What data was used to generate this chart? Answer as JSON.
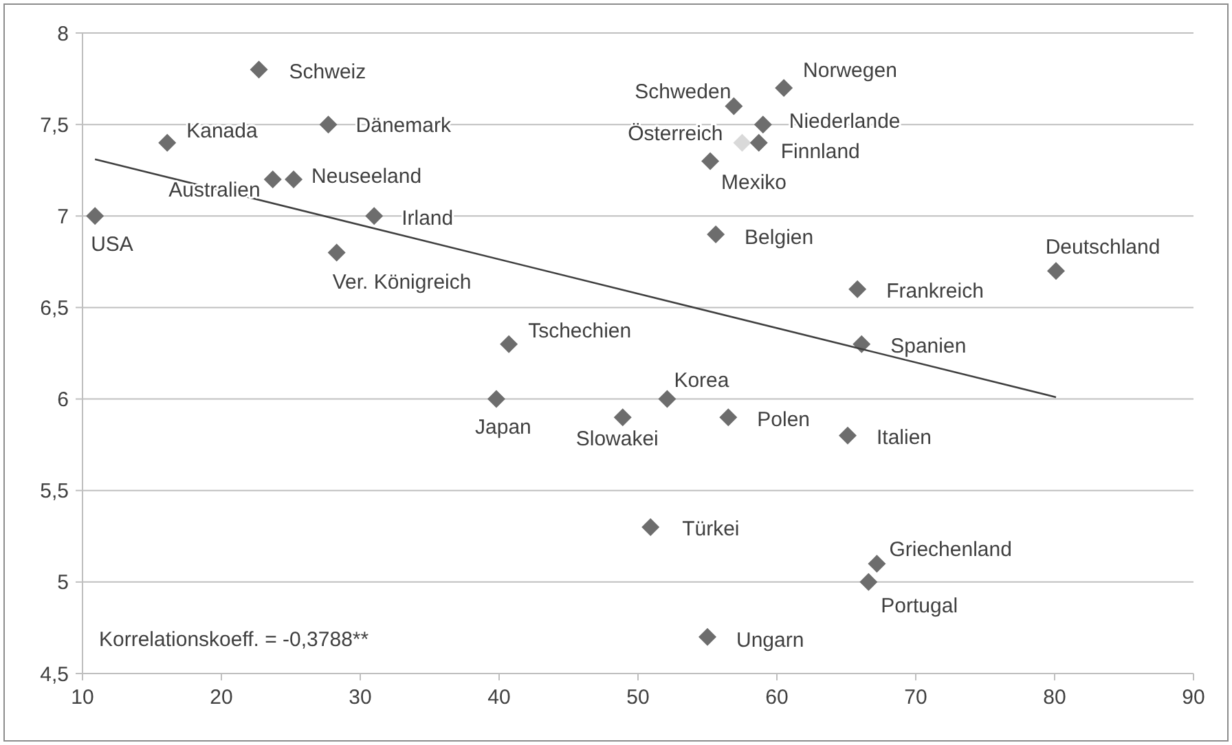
{
  "chart_data": {
    "type": "scatter",
    "xlim": [
      10,
      90
    ],
    "xticks": [
      10,
      20,
      30,
      40,
      50,
      60,
      70,
      80,
      90
    ],
    "ylim": [
      4.5,
      8
    ],
    "yticks": [
      {
        "value": 4.5,
        "label": "4,5"
      },
      5,
      {
        "value": 5.5,
        "label": "5,5"
      },
      6,
      {
        "value": 6.5,
        "label": "6,5"
      },
      7,
      {
        "value": 7.5,
        "label": "7,5"
      },
      8
    ],
    "grid": "y",
    "marker": "diamond",
    "series": [
      {
        "type": "scatter",
        "x": [
          10.9,
          16.1,
          22.7,
          27.7,
          23.7,
          25.2,
          31.0,
          28.3,
          40.7,
          39.8,
          48.9,
          52.1,
          56.5,
          65.1,
          50.9,
          67.2,
          66.6,
          55.0,
          60.5,
          56.9,
          59.0,
          57.5,
          58.7,
          55.2,
          55.6,
          65.8,
          80.1,
          66.1
        ],
        "values": [
          7.0,
          7.4,
          7.8,
          7.5,
          7.2,
          7.2,
          7.0,
          6.8,
          6.3,
          6.0,
          5.9,
          6.0,
          5.9,
          5.8,
          5.3,
          5.1,
          5.0,
          4.7,
          7.7,
          7.6,
          7.5,
          7.4,
          7.4,
          7.3,
          6.9,
          6.6,
          6.7,
          6.3
        ],
        "colors": [
          "#6d6d6d",
          "#6d6d6d",
          "#6d6d6d",
          "#6d6d6d",
          "#6d6d6d",
          "#6d6d6d",
          "#6d6d6d",
          "#6d6d6d",
          "#6d6d6d",
          "#6d6d6d",
          "#6d6d6d",
          "#6d6d6d",
          "#6d6d6d",
          "#6d6d6d",
          "#6d6d6d",
          "#6d6d6d",
          "#6d6d6d",
          "#6d6d6d",
          "#6d6d6d",
          "#6d6d6d",
          "#6d6d6d",
          "#d9d9d9",
          "#6d6d6d",
          "#6d6d6d",
          "#6d6d6d",
          "#6d6d6d",
          "#6d6d6d",
          "#6d6d6d"
        ]
      },
      {
        "type": "line",
        "x": [
          10.9,
          80.1
        ],
        "values": [
          7.31,
          6.01
        ],
        "color": "#404040",
        "marker": "none"
      }
    ],
    "annotations": [
      {
        "text": "USA",
        "x": 10.9,
        "y": 7.0
      },
      {
        "text": "Kanada",
        "x": 16.1,
        "y": 7.4
      },
      {
        "text": "Schweiz",
        "x": 22.7,
        "y": 7.8
      },
      {
        "text": "Dänemark",
        "x": 27.7,
        "y": 7.5
      },
      {
        "text": "Australien",
        "x": 23.7,
        "y": 7.2
      },
      {
        "text": "Neuseeland",
        "x": 25.2,
        "y": 7.2
      },
      {
        "text": "Irland",
        "x": 31.0,
        "y": 7.0
      },
      {
        "text": "Ver. Königreich",
        "x": 28.3,
        "y": 6.8
      },
      {
        "text": "Tschechien",
        "x": 40.7,
        "y": 6.3
      },
      {
        "text": "Japan",
        "x": 39.8,
        "y": 6.0
      },
      {
        "text": "Slowakei",
        "x": 48.9,
        "y": 5.9
      },
      {
        "text": "Korea",
        "x": 52.1,
        "y": 6.0
      },
      {
        "text": "Polen",
        "x": 56.5,
        "y": 5.9
      },
      {
        "text": "Italien",
        "x": 65.1,
        "y": 5.8
      },
      {
        "text": "Türkei",
        "x": 50.9,
        "y": 5.3
      },
      {
        "text": "Griechenland",
        "x": 67.2,
        "y": 5.1
      },
      {
        "text": "Portugal",
        "x": 66.6,
        "y": 5.0
      },
      {
        "text": "Ungarn",
        "x": 55.0,
        "y": 4.7
      },
      {
        "text": "Norwegen",
        "x": 60.5,
        "y": 7.7
      },
      {
        "text": "Schweden",
        "x": 56.9,
        "y": 7.6
      },
      {
        "text": "Niederlande",
        "x": 59.0,
        "y": 7.5
      },
      {
        "text": "Österreich",
        "x": 57.5,
        "y": 7.4
      },
      {
        "text": "Finnland",
        "x": 58.7,
        "y": 7.4
      },
      {
        "text": "Mexiko",
        "x": 55.2,
        "y": 7.3
      },
      {
        "text": "Belgien",
        "x": 55.6,
        "y": 6.9
      },
      {
        "text": "Frankreich",
        "x": 65.8,
        "y": 6.6
      },
      {
        "text": "Deutschland",
        "x": 80.1,
        "y": 6.7
      },
      {
        "text": "Spanien",
        "x": 66.1,
        "y": 6.3
      },
      "Korrelationskoeff.  = -0,3788**"
    ]
  }
}
